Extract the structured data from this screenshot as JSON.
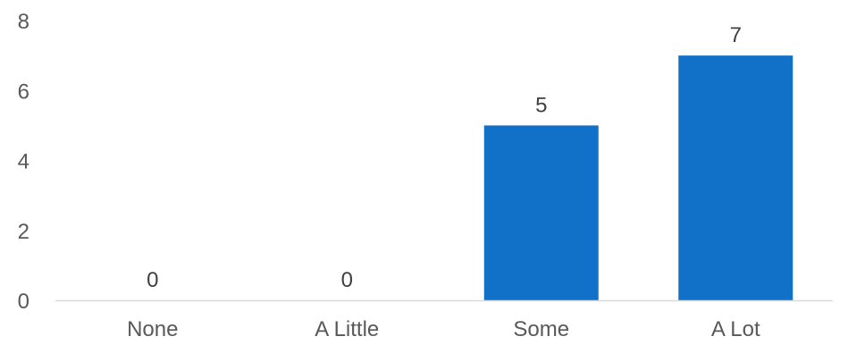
{
  "chart_data": {
    "type": "bar",
    "categories": [
      "None",
      "A Little",
      "Some",
      "A Lot"
    ],
    "values": [
      0,
      0,
      5,
      7
    ],
    "data_labels": [
      "0",
      "0",
      "5",
      "7"
    ],
    "y_ticks": [
      "0",
      "2",
      "4",
      "6",
      "8"
    ],
    "ylim": [
      0,
      8
    ],
    "grid": false,
    "bar_color": "#1170C8",
    "axis_color": "#D9D9D9"
  }
}
